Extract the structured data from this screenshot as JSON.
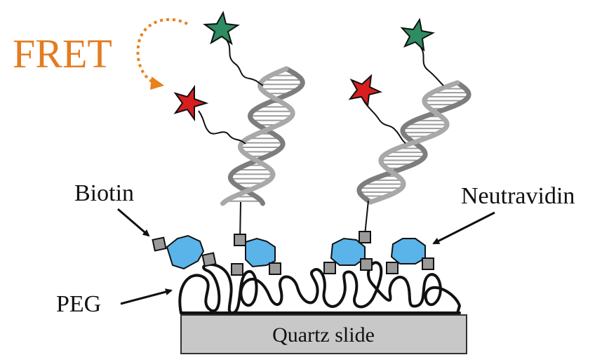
{
  "labels": {
    "fret": "FRET",
    "biotin": "Biotin",
    "neutravidin": "Neutravidin",
    "peg": "PEG",
    "quartz_slide": "Quartz slide"
  },
  "colors": {
    "fret_label": "#e37c22",
    "fret_arrow": "#e8821e",
    "donor_star": "#2e8b62",
    "acceptor_star": "#d81e1e",
    "neutravidin": "#5ab4ea",
    "biotin": "#9a9a9a",
    "slide": "#c8c8c8",
    "dna_backbone": "#8a8a8a"
  },
  "icons": {
    "donor": "green-star-icon",
    "acceptor": "red-star-icon",
    "dna": "double-helix",
    "biotin": "gray-square",
    "neutravidin": "blue-protein-blob",
    "peg": "tangled-polymer-coil"
  }
}
